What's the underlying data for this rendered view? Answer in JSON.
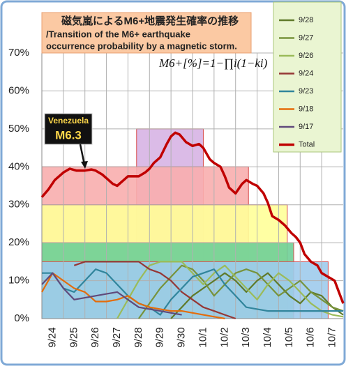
{
  "chart_data": {
    "type": "line",
    "title": "磁気嵐によるM6+地震発生確率の推移",
    "subtitle": [
      "/Transition of the M6+ earthquake",
      "occurrence probability by a magnetic storm."
    ],
    "formula": "M6+[%]=1−∏i(1−ki)",
    "annotation": [
      "Venezuela",
      "M6.3"
    ],
    "xlim": [
      0,
      14
    ],
    "ylim": [
      0,
      70
    ],
    "xticks": [
      {
        "value": 0,
        "label": "9/24"
      },
      {
        "value": 1,
        "label": "9/25"
      },
      {
        "value": 2,
        "label": "9/26"
      },
      {
        "value": 3,
        "label": "9/27"
      },
      {
        "value": 4,
        "label": "9/28"
      },
      {
        "value": 5,
        "label": "9/29"
      },
      {
        "value": 6,
        "label": "9/30"
      },
      {
        "value": 7,
        "label": "10/1"
      },
      {
        "value": 8,
        "label": "10/2"
      },
      {
        "value": 9,
        "label": "10/3"
      },
      {
        "value": 10,
        "label": "10/4"
      },
      {
        "value": 11,
        "label": "10/5"
      },
      {
        "value": 12,
        "label": "10/6"
      },
      {
        "value": 13,
        "label": "10/7"
      }
    ],
    "yticks": [
      {
        "value": 0,
        "label": "0%"
      },
      {
        "value": 10,
        "label": "10%"
      },
      {
        "value": 20,
        "label": "20%"
      },
      {
        "value": 30,
        "label": "30%"
      },
      {
        "value": 40,
        "label": "40%"
      },
      {
        "value": 50,
        "label": "50%"
      },
      {
        "value": 60,
        "label": "60%"
      },
      {
        "value": 70,
        "label": "70%"
      }
    ],
    "grid": true,
    "bands": [
      {
        "value": 50,
        "start": 4.4,
        "end": 7.5,
        "color": "#d7b4e4"
      },
      {
        "value": 40,
        "start": 0,
        "end": 9.6,
        "color": "#f8aeae"
      },
      {
        "value": 30,
        "start": 0,
        "end": 11.4,
        "color": "#ffff99"
      },
      {
        "value": 20,
        "start": 0,
        "end": 11.7,
        "color": "#6fcf97"
      },
      {
        "value": 15,
        "start": 0,
        "end": 13.3,
        "color": "#9fcbec"
      }
    ],
    "x": [
      0,
      0.5,
      1,
      1.5,
      2,
      2.5,
      3,
      3.5,
      4,
      4.5,
      5,
      5.5,
      6,
      6.5,
      7,
      7.5,
      8,
      8.5,
      9,
      9.5,
      10,
      10.5,
      11,
      11.5,
      12,
      12.5,
      13,
      13.5,
      14
    ],
    "series": [
      {
        "name": "9/28",
        "color": "#5f7a2a",
        "values": [
          null,
          null,
          null,
          null,
          null,
          null,
          null,
          null,
          null,
          null,
          null,
          null,
          0,
          3,
          6,
          8,
          10,
          12,
          10,
          7,
          10,
          12,
          9,
          6,
          4,
          7,
          6,
          3,
          1
        ]
      },
      {
        "name": "9/27",
        "color": "#77933c",
        "values": [
          null,
          null,
          null,
          null,
          null,
          null,
          null,
          null,
          null,
          0,
          4,
          8,
          11,
          14,
          13,
          10,
          6,
          9,
          12,
          13,
          12,
          9,
          6,
          8,
          10,
          7,
          5,
          3,
          2
        ]
      },
      {
        "name": "9/26",
        "color": "#9bbb59",
        "values": [
          null,
          null,
          null,
          null,
          null,
          null,
          null,
          0,
          5,
          10,
          14,
          15,
          15,
          15,
          12,
          9,
          12,
          14,
          11,
          8,
          5,
          9,
          12,
          10,
          7,
          4,
          2,
          1,
          0.5
        ]
      },
      {
        "name": "9/24",
        "color": "#953735",
        "values": [
          null,
          null,
          null,
          14,
          15,
          15,
          15,
          15,
          15,
          15,
          13,
          12,
          10,
          7,
          5,
          3,
          2,
          1,
          0,
          null,
          null,
          null,
          null,
          null,
          null,
          null,
          null,
          null,
          null
        ]
      },
      {
        "name": "9/23",
        "color": "#31859c",
        "values": [
          12,
          12,
          8,
          7,
          10,
          13,
          12,
          9,
          6,
          4,
          3,
          1,
          5,
          8,
          11,
          12,
          13,
          9,
          6,
          3,
          2.5,
          2,
          2,
          2,
          2,
          2,
          2,
          2,
          2
        ]
      },
      {
        "name": "9/18",
        "color": "#e46c0a",
        "values": [
          7,
          12,
          10,
          8,
          7,
          4.5,
          4.5,
          5,
          6,
          4,
          3,
          2.5,
          2,
          2,
          1.5,
          1,
          0.5,
          0,
          null,
          null,
          null,
          null,
          null,
          null,
          null,
          null,
          null,
          null,
          null
        ]
      },
      {
        "name": "9/17",
        "color": "#604a7b",
        "values": [
          9,
          12,
          8,
          5,
          5.5,
          6,
          6.5,
          7,
          5,
          3,
          2.5,
          2,
          1.5,
          1,
          null,
          null,
          null,
          null,
          null,
          null,
          null,
          null,
          null,
          null,
          null,
          null,
          null,
          null,
          null
        ]
      },
      {
        "name": "Total",
        "color": "#c00000",
        "x": [
          0,
          0.3,
          0.6,
          1,
          1.3,
          1.6,
          2,
          2.3,
          2.5,
          2.8,
          3,
          3.3,
          3.5,
          3.8,
          4,
          4.3,
          4.5,
          4.8,
          5,
          5.2,
          5.5,
          5.8,
          6,
          6.2,
          6.4,
          6.7,
          7,
          7.3,
          7.5,
          7.8,
          8,
          8.3,
          8.5,
          8.7,
          9,
          9.3,
          9.5,
          9.8,
          10,
          10.3,
          10.5,
          10.7,
          11,
          11.3,
          11.6,
          11.8,
          12,
          12.2,
          12.5,
          12.8,
          13,
          13.3,
          13.6,
          13.8,
          14
        ],
        "values": [
          32,
          34,
          36.5,
          38.5,
          39.5,
          39,
          39,
          39.3,
          39,
          38,
          37,
          35.5,
          35,
          36.5,
          37.5,
          37.5,
          37.5,
          38.5,
          39.5,
          41,
          42.5,
          46,
          48,
          49,
          48.5,
          46.5,
          45.5,
          46,
          45,
          42,
          41,
          40,
          37.5,
          34.5,
          33,
          35.5,
          36.5,
          35.5,
          35,
          33,
          30.5,
          27,
          26,
          24.5,
          22.5,
          21.5,
          20,
          17,
          15,
          14,
          12,
          11,
          10,
          7,
          4
        ]
      }
    ]
  }
}
